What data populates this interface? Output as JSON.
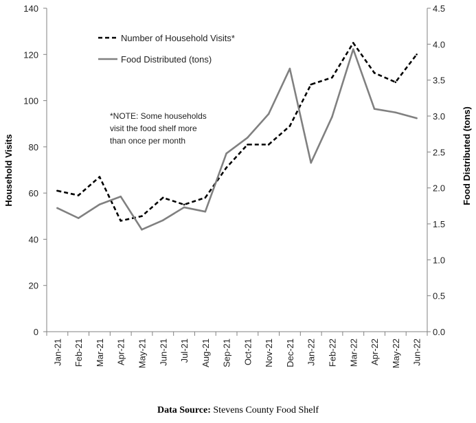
{
  "chart_data": {
    "type": "line",
    "categories": [
      "Jan-21",
      "Feb-21",
      "Mar-21",
      "Apr-21",
      "May-21",
      "Jun-21",
      "Jul-21",
      "Aug-21",
      "Sep-21",
      "Oct-21",
      "Nov-21",
      "Dec-21",
      "Jan-22",
      "Feb-22",
      "Mar-22",
      "Apr-22",
      "May-22",
      "Jun-22"
    ],
    "series": [
      {
        "name": "Number of Household Visits*",
        "axis": "left",
        "style": "dashed",
        "color": "#000000",
        "values": [
          61,
          59,
          67,
          48,
          50,
          58,
          55,
          58,
          71,
          81,
          81,
          89,
          107,
          110,
          125,
          112,
          108,
          120
        ]
      },
      {
        "name": "Food Distributed (tons)",
        "axis": "right",
        "style": "solid",
        "color": "#808080",
        "values": [
          1.72,
          1.58,
          1.77,
          1.88,
          1.42,
          1.55,
          1.73,
          1.67,
          2.48,
          2.7,
          3.03,
          3.66,
          2.35,
          2.99,
          3.93,
          3.1,
          3.05,
          2.97
        ]
      }
    ],
    "ylabel": "Household Visits",
    "ylabel_right": "Food Distributed (tons)",
    "ylim": [
      0,
      140
    ],
    "yticks": [
      0,
      20,
      40,
      60,
      80,
      100,
      120,
      140
    ],
    "ylim_right": [
      0,
      4.5
    ],
    "yticks_right": [
      "0.0",
      "0.5",
      "1.0",
      "1.5",
      "2.0",
      "2.5",
      "3.0",
      "3.5",
      "4.0",
      "4.5"
    ],
    "grid": false,
    "legend_position": "top-left",
    "annotation": [
      "*NOTE: Some households",
      "visit the food shelf more",
      "than once per month"
    ]
  },
  "source": {
    "label": "Data Source:",
    "text": " Stevens County Food Shelf"
  }
}
